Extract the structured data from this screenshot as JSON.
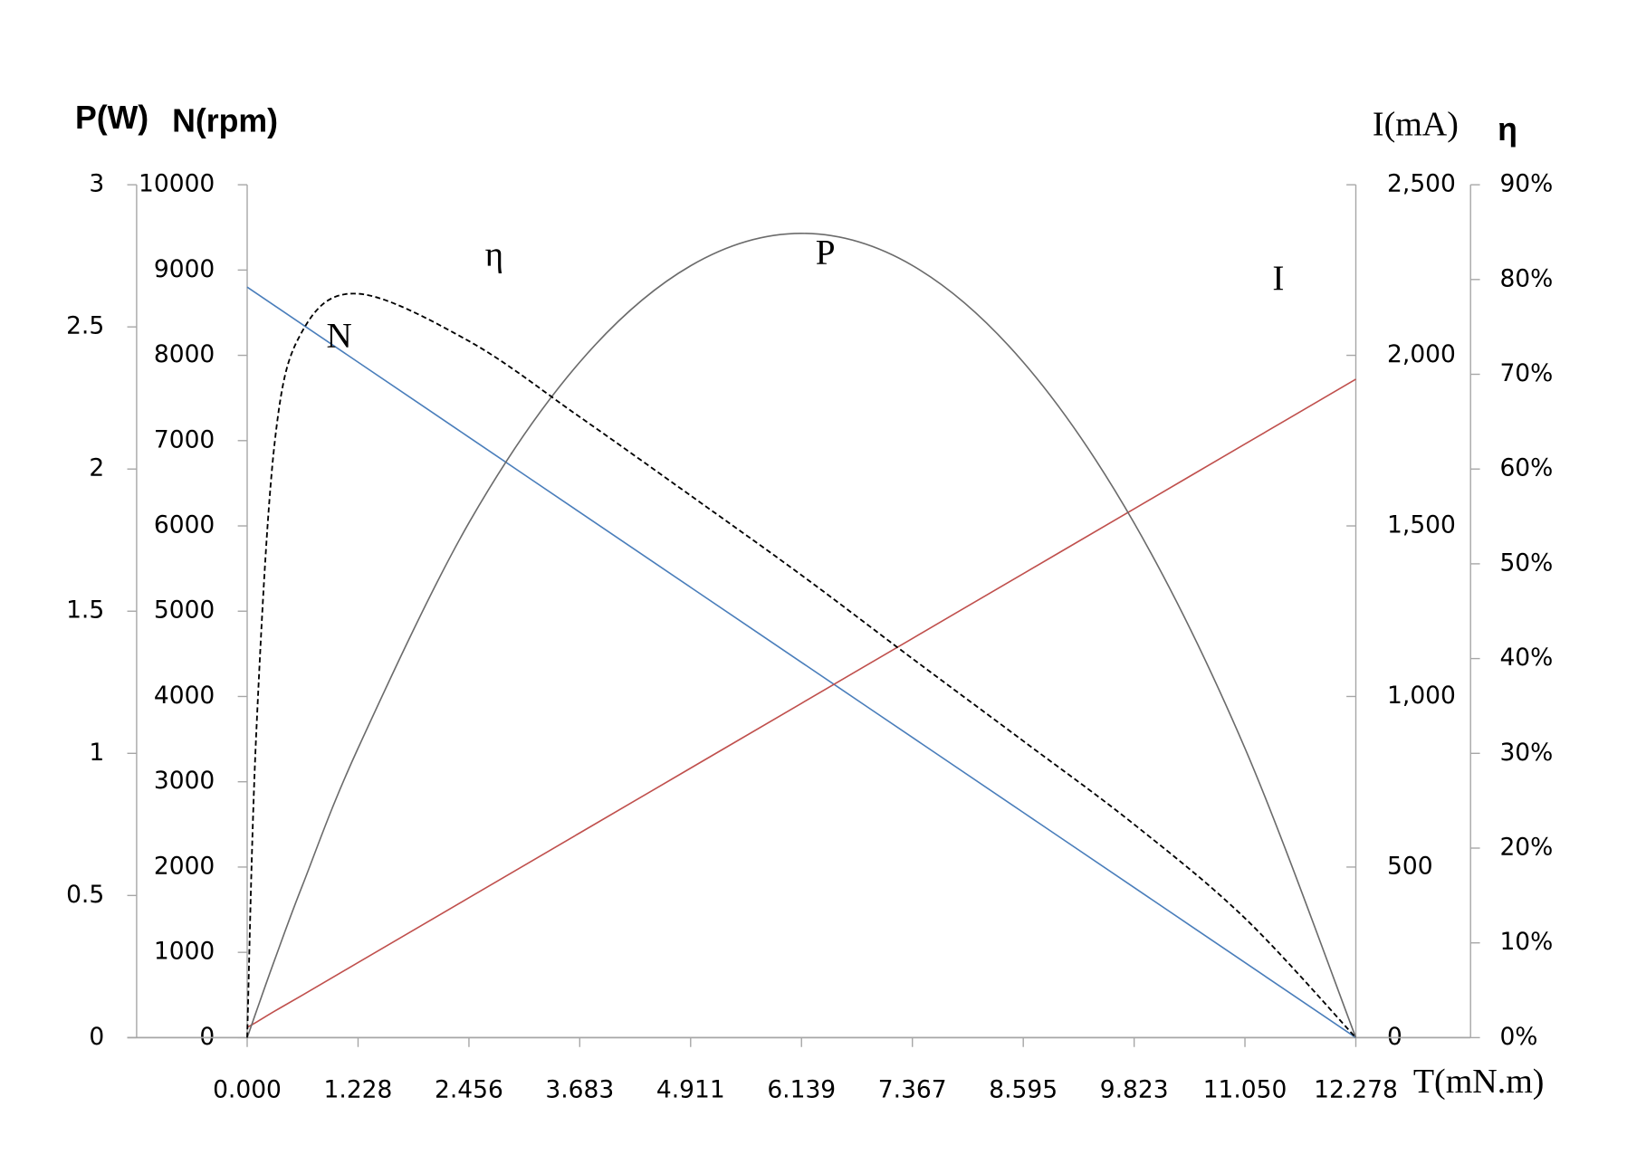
{
  "chart_data": {
    "type": "line",
    "x_label": "T(mN.m)",
    "y_label": "P(W)",
    "y3_label": "N(rpm)",
    "y2_label": "I(mA)",
    "y4_label": "η",
    "xlim": [
      0,
      12.278
    ],
    "xticks": [
      {
        "value": 0,
        "label": "0.000"
      },
      1.228,
      2.456,
      3.683,
      4.911,
      6.139,
      7.367,
      8.595,
      9.823,
      {
        "value": 11.05,
        "label": "11.050"
      },
      12.278
    ],
    "ylim": [
      0,
      3
    ],
    "yticks": [
      0,
      0.5,
      1,
      1.5,
      2,
      2.5,
      3
    ],
    "y3lim": [
      0,
      10000
    ],
    "y3ticks": [
      0,
      1000,
      2000,
      3000,
      4000,
      5000,
      6000,
      7000,
      8000,
      9000,
      10000
    ],
    "y2lim": [
      0,
      2500
    ],
    "y2ticks": [
      0,
      500,
      {
        "value": 1000,
        "label": "1,000"
      },
      {
        "value": 1500,
        "label": "1,500"
      },
      {
        "value": 2000,
        "label": "2,000"
      },
      {
        "value": 2500,
        "label": "2,500"
      }
    ],
    "y4lim": [
      0,
      90
    ],
    "y4ticks": [
      {
        "value": 0,
        "label": "0%"
      },
      {
        "value": 10,
        "label": "10%"
      },
      {
        "value": 20,
        "label": "20%"
      },
      {
        "value": 30,
        "label": "30%"
      },
      {
        "value": 40,
        "label": "40%"
      },
      {
        "value": 50,
        "label": "50%"
      },
      {
        "value": 60,
        "label": "60%"
      },
      {
        "value": 70,
        "label": "70%"
      },
      {
        "value": 80,
        "label": "80%"
      },
      {
        "value": 90,
        "label": "90%"
      }
    ],
    "x": [
      0,
      0.1,
      0.307,
      0.614,
      1.228,
      2.456,
      3.683,
      4.911,
      6.139,
      7.367,
      8.595,
      9.823,
      11.05,
      12.278
    ],
    "series": [
      {
        "name": "N",
        "color": "#4a7ebb",
        "axis": "y3",
        "dashed": false,
        "values": [
          8800,
          8728,
          8580,
          8360,
          7920,
          7040,
          6160,
          5280,
          4400,
          3520,
          2640,
          1760,
          880,
          0
        ]
      },
      {
        "name": "I",
        "color": "#c0504d",
        "axis": "y2",
        "dashed": false,
        "values": [
          30,
          45,
          78,
          125,
          220,
          410,
          600,
          790,
          980,
          1170,
          1360,
          1550,
          1740,
          1930
        ]
      },
      {
        "name": "P",
        "color": "#6b6b6b",
        "axis": "y",
        "dashed": false,
        "values": [
          0,
          0.091,
          0.276,
          0.537,
          1.018,
          1.811,
          2.376,
          2.715,
          2.829,
          2.716,
          2.376,
          1.81,
          1.018,
          0
        ]
      },
      {
        "name": "η",
        "color": "#000000",
        "axis": "y4",
        "dashed": true,
        "values": [
          0,
          32,
          63,
          74.6,
          78.5,
          73.5,
          65.5,
          57.2,
          48.8,
          40,
          31.3,
          22.5,
          12.6,
          0
        ]
      }
    ]
  }
}
